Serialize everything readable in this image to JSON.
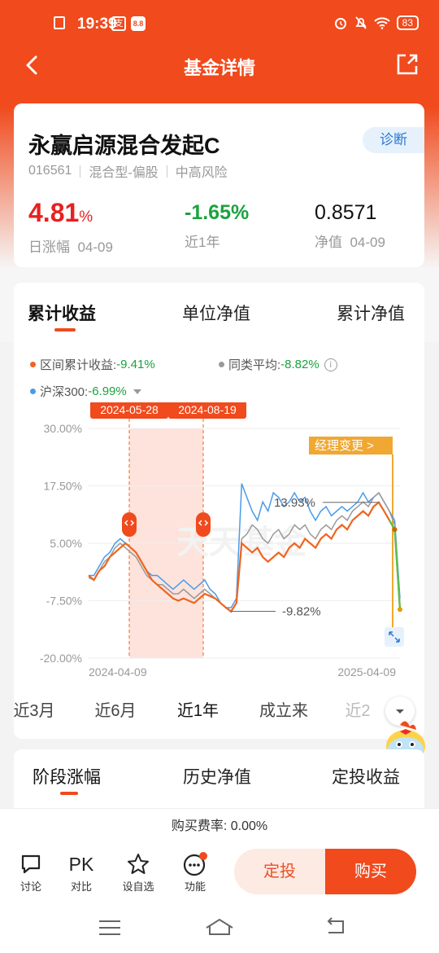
{
  "status": {
    "time": "19:39",
    "app1": "支",
    "app2": "8.8",
    "battery": "83"
  },
  "nav": {
    "title": "基金详情"
  },
  "fund": {
    "name": "永赢启源混合发起C",
    "diagnose": "诊断",
    "code": "016561",
    "type": "混合型-偏股",
    "risk": "中高风险",
    "daily_value": "4.81",
    "daily_unit": "%",
    "daily_label": "日涨幅",
    "daily_date": "04-09",
    "year_value": "-1.65%",
    "year_label": "近1年",
    "nav_value": "0.8571",
    "nav_label": "净值",
    "nav_date": "04-09"
  },
  "chart_tabs": [
    "累计收益",
    "单位净值",
    "累计净值"
  ],
  "legend": {
    "fund_label": "区间累计收益:",
    "fund_value": "-9.41%",
    "peer_label": "同类平均:",
    "peer_value": "-8.82%",
    "index_label": "沪深300:",
    "index_value": "-6.99%"
  },
  "colors": {
    "fund": "#f0641e",
    "peer": "#999999",
    "index": "#4a9be8",
    "manager": "#f0a832",
    "accent": "#f04a1d"
  },
  "chart_data": {
    "type": "line",
    "yticks": [
      "30.00%",
      "17.50%",
      "5.00%",
      "-7.50%",
      "-20.00%"
    ],
    "ylim": [
      -20,
      30
    ],
    "x_start": "2024-04-09",
    "x_end": "2025-04-09",
    "highlight_start": "2024-05-28",
    "highlight_end": "2024-08-19",
    "manager_change": "经理变更 >",
    "max_label": "13.93%",
    "min_label": "-9.82%",
    "watermark": "天天基金",
    "series": [
      {
        "name": "区间累计收益",
        "values": [
          -2,
          -3,
          -1,
          0,
          2,
          3,
          4,
          5,
          4,
          3,
          1,
          -1,
          -3,
          -4,
          -5,
          -6,
          -7,
          -7.5,
          -7,
          -7.5,
          -8,
          -7,
          -6,
          -6.5,
          -7,
          -8,
          -9,
          -9.8,
          -8,
          5,
          4,
          3,
          4,
          2,
          1,
          2,
          3,
          2,
          4,
          5,
          4,
          6,
          5,
          4,
          6,
          7,
          6,
          8,
          9,
          8,
          10,
          11,
          12,
          11,
          13,
          13.9,
          12,
          10,
          8,
          -9.4
        ]
      },
      {
        "name": "同类平均",
        "values": [
          -2.5,
          -3,
          -1,
          1,
          2,
          4,
          5,
          4,
          3,
          2,
          0,
          -2,
          -3,
          -4,
          -4,
          -5,
          -6,
          -6,
          -5,
          -6,
          -7,
          -6,
          -5,
          -6,
          -7,
          -8,
          -9,
          -10,
          -8,
          6,
          7,
          9,
          8,
          6,
          5,
          7,
          8,
          6,
          7,
          9,
          8,
          9,
          7,
          6,
          8,
          9,
          8,
          10,
          11,
          10,
          12,
          13,
          14,
          13,
          15,
          16,
          14,
          12,
          9,
          -8.8
        ]
      },
      {
        "name": "沪深300",
        "values": [
          -2,
          -2,
          0,
          2,
          3,
          5,
          6,
          5,
          4,
          3,
          1,
          -1,
          -2,
          -2,
          -3,
          -4,
          -5,
          -4,
          -3,
          -4,
          -5,
          -4,
          -3,
          -5,
          -6,
          -8,
          -9,
          -9,
          -7,
          18,
          15,
          12,
          10,
          14,
          12,
          16,
          15,
          13,
          14,
          16,
          14,
          15,
          12,
          10,
          12,
          13,
          11,
          12,
          13,
          12,
          13,
          14,
          16,
          14,
          15,
          16,
          14,
          12,
          10,
          -7
        ]
      }
    ]
  },
  "periods": [
    "近3月",
    "近6月",
    "近1年",
    "成立来",
    "近2"
  ],
  "stage_tabs": [
    "阶段涨幅",
    "历史净值",
    "定投收益"
  ],
  "fee": "购买费率: 0.00%",
  "bottom": {
    "discuss": "讨论",
    "pk_text": "PK",
    "pk": "对比",
    "watch": "设自选",
    "func": "功能",
    "dingtou": "定投",
    "buy": "购买"
  }
}
